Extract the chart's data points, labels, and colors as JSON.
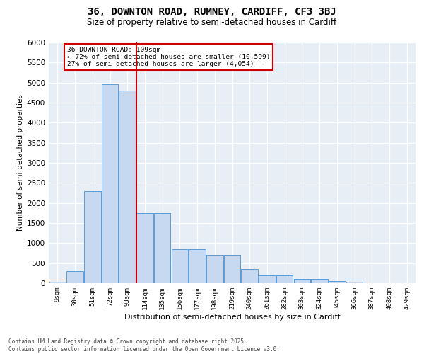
{
  "title1": "36, DOWNTON ROAD, RUMNEY, CARDIFF, CF3 3BJ",
  "title2": "Size of property relative to semi-detached houses in Cardiff",
  "xlabel": "Distribution of semi-detached houses by size in Cardiff",
  "ylabel": "Number of semi-detached properties",
  "footer": "Contains HM Land Registry data © Crown copyright and database right 2025.\nContains public sector information licensed under the Open Government Licence v3.0.",
  "bins": [
    "9sqm",
    "30sqm",
    "51sqm",
    "72sqm",
    "93sqm",
    "114sqm",
    "135sqm",
    "156sqm",
    "177sqm",
    "198sqm",
    "219sqm",
    "240sqm",
    "261sqm",
    "282sqm",
    "303sqm",
    "324sqm",
    "345sqm",
    "366sqm",
    "387sqm",
    "408sqm",
    "429sqm"
  ],
  "values": [
    30,
    300,
    2300,
    4950,
    4800,
    1750,
    1750,
    850,
    850,
    700,
    700,
    350,
    200,
    200,
    100,
    100,
    60,
    40,
    0,
    0,
    0
  ],
  "bar_color": "#c6d9f0",
  "bar_edge_color": "#5b9bd5",
  "vline_color": "#cc0000",
  "annotation_text": "36 DOWNTON ROAD: 109sqm\n← 72% of semi-detached houses are smaller (10,599)\n27% of semi-detached houses are larger (4,054) →",
  "annotation_box_edgecolor": "#cc0000",
  "ylim": [
    0,
    6000
  ],
  "yticks": [
    0,
    500,
    1000,
    1500,
    2000,
    2500,
    3000,
    3500,
    4000,
    4500,
    5000,
    5500,
    6000
  ],
  "bg_color": "#e8eef6",
  "grid_color": "#ffffff",
  "vline_pos": 4.5
}
